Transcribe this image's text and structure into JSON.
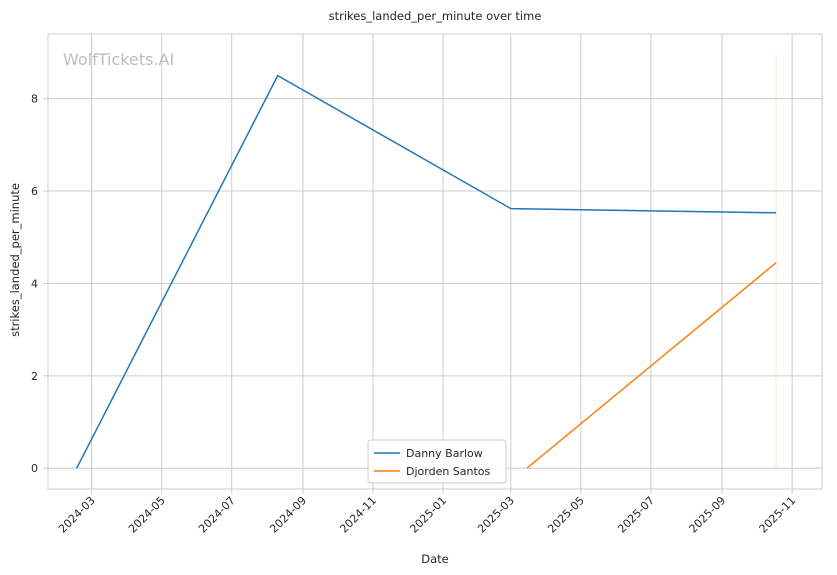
{
  "chart_data": {
    "type": "line",
    "title": "strikes_landed_per_minute over time",
    "xlabel": "Date",
    "ylabel": "strikes_landed_per_minute",
    "watermark": "WolfTickets.AI",
    "x_ticks": [
      "2024-03",
      "2024-05",
      "2024-07",
      "2024-09",
      "2024-11",
      "2025-01",
      "2025-03",
      "2025-05",
      "2025-07",
      "2025-09",
      "2025-11"
    ],
    "y_ticks": [
      0,
      2,
      4,
      6,
      8
    ],
    "ylim": [
      -0.45,
      9.4
    ],
    "xlim": [
      "2024-01-23",
      "2025-11-27"
    ],
    "grid": true,
    "legend_position": "bottom-center",
    "series": [
      {
        "name": "Danny Barlow",
        "color": "#1f77b4",
        "points": [
          {
            "x": "2024-02-17",
            "y": 0
          },
          {
            "x": "2024-08-10",
            "y": 8.5
          },
          {
            "x": "2025-03-01",
            "y": 5.62
          },
          {
            "x": "2025-10-18",
            "y": 5.53
          }
        ]
      },
      {
        "name": "Djorden Santos",
        "color": "#ff7f0e",
        "points": [
          {
            "x": "2025-03-15",
            "y": 0
          },
          {
            "x": "2025-10-18",
            "y": 4.45
          }
        ]
      }
    ],
    "vline": {
      "x": "2025-10-18",
      "y_range": [
        0,
        8.95
      ],
      "color": "#ff7f0e"
    }
  }
}
